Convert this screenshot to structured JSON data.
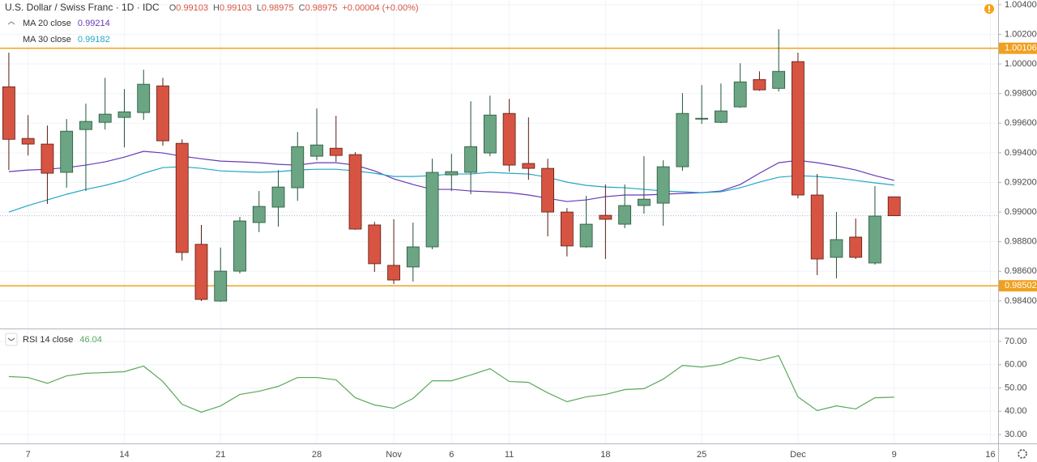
{
  "chart_data": [
    {
      "type": "candlestick",
      "title": "U.S. Dollar / Swiss Franc · 1D · IDC",
      "ohlc_prefixes": [
        "O",
        "H",
        "L",
        "C"
      ],
      "change_label": "+0.00004 (+0.00%)",
      "x": [
        0,
        1,
        2,
        3,
        4,
        5,
        6,
        7,
        8,
        9,
        10,
        11,
        12,
        13,
        14,
        15,
        16,
        17,
        18,
        19,
        20,
        21,
        22,
        23,
        24,
        25,
        26,
        27,
        28,
        29,
        30,
        31,
        32,
        33,
        34,
        35,
        36,
        37,
        38,
        39,
        40,
        41,
        42,
        43,
        44,
        45,
        46
      ],
      "open": [
        0.99846,
        0.99497,
        0.99459,
        0.99268,
        0.99557,
        0.99606,
        0.99639,
        0.99672,
        0.99852,
        0.99464,
        0.98782,
        0.98399,
        0.98601,
        0.98929,
        0.99033,
        0.99164,
        0.99377,
        0.99431,
        0.99388,
        0.98913,
        0.9864,
        0.98629,
        0.98765,
        0.99251,
        0.99268,
        0.99399,
        0.99666,
        0.99328,
        0.99295,
        0.99,
        0.98765,
        0.98978,
        0.98918,
        0.99044,
        0.9906,
        0.99306,
        0.99628,
        0.99606,
        0.9971,
        0.99895,
        0.99835,
        1.00016,
        0.99115,
        0.98694,
        0.98831,
        0.98656,
        0.99103
      ],
      "high": [
        1.00076,
        0.99655,
        0.99584,
        0.99628,
        0.99732,
        0.99906,
        0.9983,
        0.99961,
        0.99906,
        0.99491,
        0.98913,
        0.9876,
        0.98967,
        0.99142,
        0.99284,
        0.99541,
        0.99699,
        0.9965,
        0.99404,
        0.98934,
        0.98951,
        0.98929,
        0.9936,
        0.99393,
        0.99748,
        0.99786,
        0.99764,
        0.99639,
        0.9936,
        0.99027,
        0.99109,
        0.99186,
        0.99186,
        0.99377,
        0.99349,
        0.99803,
        0.99857,
        0.99868,
        1.00005,
        0.9995,
        1.00234,
        1.00076,
        0.99257,
        0.99,
        0.98956,
        0.99175,
        0.99103
      ],
      "low": [
        0.99284,
        0.99382,
        0.99055,
        0.99164,
        0.99142,
        0.99557,
        0.99437,
        0.99622,
        0.99448,
        0.98672,
        0.98399,
        0.98394,
        0.98585,
        0.98864,
        0.98902,
        0.99076,
        0.99349,
        0.99339,
        0.9888,
        0.98596,
        0.98514,
        0.9853,
        0.98749,
        0.99142,
        0.9912,
        0.99377,
        0.99273,
        0.99218,
        0.98836,
        0.987,
        0.9876,
        0.98683,
        0.98891,
        0.98989,
        0.98907,
        0.99279,
        0.99595,
        0.99601,
        0.99704,
        0.99819,
        0.99814,
        0.99093,
        0.98574,
        0.98552,
        0.98683,
        0.98645,
        0.98975
      ],
      "close": [
        0.99491,
        0.99459,
        0.99262,
        0.99546,
        0.99612,
        0.99661,
        0.99677,
        0.99863,
        0.99481,
        0.98727,
        0.9841,
        0.98601,
        0.9894,
        0.99038,
        0.99169,
        0.99442,
        0.99453,
        0.99382,
        0.98885,
        0.98651,
        0.98541,
        0.98765,
        0.99268,
        0.99273,
        0.99442,
        0.99655,
        0.99317,
        0.99295,
        0.99,
        0.98771,
        0.98918,
        0.98951,
        0.99044,
        0.99087,
        0.99306,
        0.99666,
        0.99633,
        0.99683,
        0.99879,
        0.99825,
        0.9995,
        0.99115,
        0.98683,
        0.98814,
        0.98694,
        0.98973,
        0.98975
      ],
      "up_color": "#6ba583",
      "down_color": "#d75442",
      "up_border": "#225437",
      "down_border": "#5b1a13",
      "series": [
        {
          "name": "MA 20 close",
          "color": "#673ab7",
          "values": [
            0.99273,
            0.99284,
            0.99289,
            0.993,
            0.99317,
            0.99339,
            0.99371,
            0.9941,
            0.99399,
            0.99377,
            0.9936,
            0.99344,
            0.99339,
            0.99333,
            0.99322,
            0.99317,
            0.99333,
            0.99333,
            0.99317,
            0.99278,
            0.99224,
            0.99186,
            0.99153,
            0.99153,
            0.99142,
            0.99137,
            0.99131,
            0.99115,
            0.99093,
            0.99071,
            0.99082,
            0.99104,
            0.99115,
            0.99115,
            0.9912,
            0.99126,
            0.99131,
            0.99142,
            0.99186,
            0.99262,
            0.99333,
            0.99349,
            0.99333,
            0.99311,
            0.99284,
            0.99246,
            0.99214
          ]
        },
        {
          "name": "MA 30 close",
          "color": "#22a7c7",
          "values": [
            0.99,
            0.99044,
            0.99082,
            0.9912,
            0.99153,
            0.9918,
            0.99213,
            0.99262,
            0.993,
            0.99306,
            0.99295,
            0.99278,
            0.99273,
            0.99268,
            0.99273,
            0.99284,
            0.99289,
            0.99289,
            0.99278,
            0.99262,
            0.9924,
            0.9924,
            0.99246,
            0.99257,
            0.99257,
            0.99268,
            0.99262,
            0.99257,
            0.99235,
            0.99202,
            0.9918,
            0.99169,
            0.99164,
            0.99153,
            0.99142,
            0.99137,
            0.99131,
            0.99137,
            0.99164,
            0.99202,
            0.99235,
            0.99246,
            0.9924,
            0.99229,
            0.99213,
            0.99197,
            0.99182
          ]
        }
      ],
      "hlines": [
        {
          "value": 1.00106,
          "color": "#f0a020"
        },
        {
          "value": 0.98502,
          "color": "#f0a020"
        }
      ],
      "ylim": [
        0.98219,
        1.00432
      ],
      "yticks": [
        {
          "value": 1.004,
          "label": "1.00400"
        },
        {
          "value": 1.002,
          "label": "1.00200"
        },
        {
          "value": 1.0,
          "label": "1.00000"
        },
        {
          "value": 0.998,
          "label": "0.99800"
        },
        {
          "value": 0.996,
          "label": "0.99600"
        },
        {
          "value": 0.994,
          "label": "0.99400"
        },
        {
          "value": 0.992,
          "label": "0.99200"
        },
        {
          "value": 0.99,
          "label": "0.99000"
        },
        {
          "value": 0.988,
          "label": "0.98800"
        },
        {
          "value": 0.986,
          "label": "0.98600"
        },
        {
          "value": 0.984,
          "label": "0.98400"
        }
      ],
      "xlim": [
        -0.46,
        51.4
      ],
      "xticks": [
        {
          "value": 1,
          "label": "7"
        },
        {
          "value": 6,
          "label": "14"
        },
        {
          "value": 11,
          "label": "21"
        },
        {
          "value": 16,
          "label": "28"
        },
        {
          "value": 20,
          "label": "Nov"
        },
        {
          "value": 23,
          "label": "6"
        },
        {
          "value": 26,
          "label": "11"
        },
        {
          "value": 31,
          "label": "18"
        },
        {
          "value": 36,
          "label": "25"
        },
        {
          "value": 41,
          "label": "Dec"
        },
        {
          "value": 46,
          "label": "9"
        },
        {
          "value": 51,
          "label": "16"
        }
      ],
      "grid": true
    },
    {
      "type": "line",
      "series": [
        {
          "name": "RSI 14 close",
          "color": "#5aa85a",
          "values": [
            54.9,
            54.5,
            52.0,
            55.2,
            56.3,
            56.6,
            57.0,
            59.4,
            52.8,
            43.0,
            39.6,
            42.3,
            47.2,
            48.6,
            50.7,
            54.5,
            54.5,
            53.5,
            45.8,
            42.7,
            41.3,
            45.5,
            53.1,
            53.1,
            55.6,
            58.3,
            52.8,
            52.4,
            47.9,
            44.1,
            46.2,
            47.2,
            49.3,
            49.7,
            53.8,
            59.7,
            59.0,
            60.1,
            63.2,
            61.8,
            63.9,
            46.2,
            40.3,
            42.3,
            41.0,
            45.8,
            46.04
          ]
        }
      ],
      "ylim": [
        26.2,
        75.2
      ],
      "yticks": [
        {
          "value": 70,
          "label": "70.00"
        },
        {
          "value": 60,
          "label": "60.00"
        },
        {
          "value": 50,
          "label": "50.00"
        },
        {
          "value": 40,
          "label": "40.00"
        },
        {
          "value": 30,
          "label": "30.00"
        }
      ],
      "grid": true
    }
  ]
}
